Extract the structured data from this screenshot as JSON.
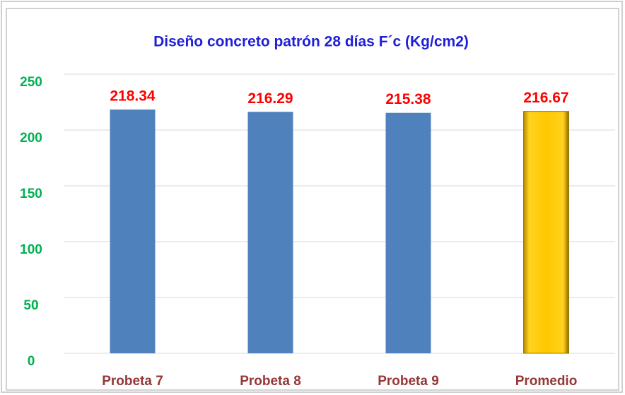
{
  "chart_data": {
    "type": "bar",
    "title": "Diseño concreto patrón 28 días F´c (Kg/cm2)",
    "categories": [
      "Probeta 7",
      "Probeta 8",
      "Probeta 9",
      "Promedio"
    ],
    "values": [
      218.34,
      216.29,
      215.38,
      216.67
    ],
    "colors": [
      "#4f81bd",
      "#4f81bd",
      "#4f81bd",
      "#ffc000"
    ],
    "ylim": [
      0,
      250
    ],
    "yticks": [
      0,
      50,
      100,
      150,
      200,
      250
    ],
    "grid": true
  }
}
